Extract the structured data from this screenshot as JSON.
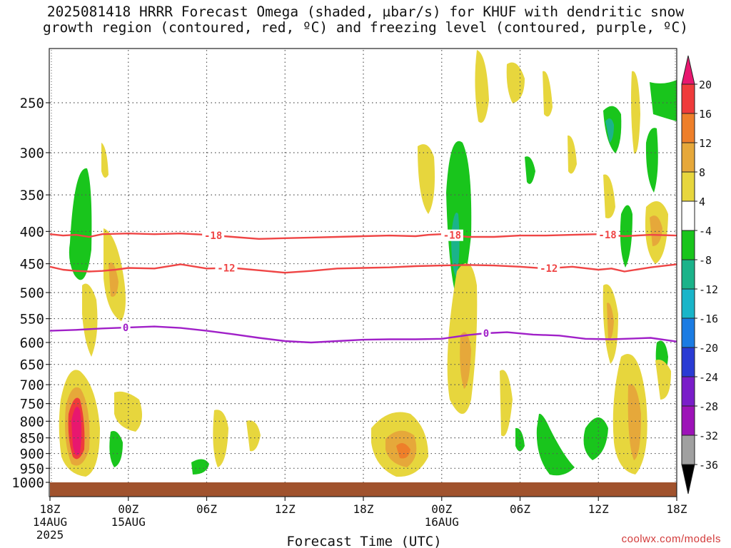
{
  "chart_data": {
    "type": "heatmap",
    "title_line1": "2025081418 HRRR Forecast Omega (shaded, µbar/s) for KHUF with dendritic snow",
    "title_line2": "growth region (contoured, red, ºC) and freezing level (contoured, purple, ºC)",
    "xlabel": "Forecast Time (UTC)",
    "credit": "coolwx.com/models",
    "x_ticks": [
      {
        "hour": 0,
        "label": "18Z",
        "sub1": "14AUG",
        "sub2": "2025"
      },
      {
        "hour": 6,
        "label": "00Z",
        "sub1": "15AUG",
        "sub2": ""
      },
      {
        "hour": 12,
        "label": "06Z",
        "sub1": "",
        "sub2": ""
      },
      {
        "hour": 18,
        "label": "12Z",
        "sub1": "",
        "sub2": ""
      },
      {
        "hour": 24,
        "label": "18Z",
        "sub1": "",
        "sub2": ""
      },
      {
        "hour": 30,
        "label": "00Z",
        "sub1": "16AUG",
        "sub2": ""
      },
      {
        "hour": 36,
        "label": "06Z",
        "sub1": "",
        "sub2": ""
      },
      {
        "hour": 42,
        "label": "12Z",
        "sub1": "",
        "sub2": ""
      },
      {
        "hour": 48,
        "label": "18Z",
        "sub1": "",
        "sub2": ""
      }
    ],
    "y_ticks": [
      250,
      300,
      350,
      400,
      450,
      500,
      550,
      600,
      650,
      700,
      750,
      800,
      850,
      900,
      950,
      1000
    ],
    "xlim_hours": [
      0,
      48
    ],
    "ylim_mb": [
      200,
      1000
    ],
    "colorbar": {
      "labels": [
        "20",
        "16",
        "12",
        "8",
        "4",
        "-4",
        "-8",
        "-12",
        "-16",
        "-20",
        "-24",
        "-28",
        "-32",
        "-36"
      ],
      "colors": [
        "#e8176f",
        "#ef3b3b",
        "#ee7f2a",
        "#e6a83a",
        "#e7d63d",
        "#ffffff",
        "#19c51c",
        "#1bb38a",
        "#19b5c9",
        "#1b7ce3",
        "#2a3bd4",
        "#7a1dc9",
        "#9d12b8",
        "#a0a0a0",
        "#000000"
      ]
    },
    "contours": [
      {
        "label": "-18",
        "color": "#ef4545",
        "label_hours": [
          12.5,
          30.8,
          42.7
        ],
        "points": [
          [
            0,
            404
          ],
          [
            1,
            406
          ],
          [
            2,
            405
          ],
          [
            3,
            408
          ],
          [
            4,
            404
          ],
          [
            6,
            403
          ],
          [
            8,
            404
          ],
          [
            10,
            403
          ],
          [
            12,
            405
          ],
          [
            14,
            408
          ],
          [
            16,
            411
          ],
          [
            18,
            410
          ],
          [
            20,
            409
          ],
          [
            22,
            408
          ],
          [
            24,
            407
          ],
          [
            26,
            406
          ],
          [
            28,
            407
          ],
          [
            29,
            405
          ],
          [
            30,
            404
          ],
          [
            31,
            406
          ],
          [
            32,
            408
          ],
          [
            34,
            408
          ],
          [
            36,
            406
          ],
          [
            38,
            406
          ],
          [
            40,
            405
          ],
          [
            42,
            404
          ],
          [
            44,
            407
          ],
          [
            46,
            405
          ],
          [
            48,
            406
          ]
        ]
      },
      {
        "label": "-12",
        "color": "#ef4545",
        "label_hours": [
          13.5,
          38.2
        ],
        "points": [
          [
            0,
            455
          ],
          [
            1,
            460
          ],
          [
            2,
            462
          ],
          [
            3,
            463
          ],
          [
            4,
            462
          ],
          [
            5,
            460
          ],
          [
            6,
            457
          ],
          [
            8,
            458
          ],
          [
            10,
            451
          ],
          [
            12,
            458
          ],
          [
            14,
            457
          ],
          [
            16,
            461
          ],
          [
            18,
            465
          ],
          [
            20,
            462
          ],
          [
            22,
            458
          ],
          [
            24,
            457
          ],
          [
            26,
            456
          ],
          [
            28,
            454
          ],
          [
            30,
            453
          ],
          [
            32,
            452
          ],
          [
            34,
            453
          ],
          [
            36,
            455
          ],
          [
            38,
            458
          ],
          [
            40,
            455
          ],
          [
            42,
            460
          ],
          [
            43,
            458
          ],
          [
            44,
            463
          ],
          [
            46,
            456
          ],
          [
            48,
            451
          ]
        ]
      },
      {
        "label": "0",
        "color": "#a020c8",
        "label_hours": [
          5.8,
          33.4
        ],
        "points": [
          [
            0,
            575
          ],
          [
            2,
            573
          ],
          [
            4,
            570
          ],
          [
            6,
            568
          ],
          [
            8,
            566
          ],
          [
            10,
            569
          ],
          [
            12,
            575
          ],
          [
            14,
            582
          ],
          [
            16,
            590
          ],
          [
            18,
            597
          ],
          [
            20,
            600
          ],
          [
            22,
            597
          ],
          [
            24,
            594
          ],
          [
            26,
            593
          ],
          [
            28,
            593
          ],
          [
            30,
            592
          ],
          [
            32,
            584
          ],
          [
            33.4,
            580
          ],
          [
            35,
            578
          ],
          [
            37,
            583
          ],
          [
            39,
            585
          ],
          [
            41,
            592
          ],
          [
            43,
            593
          ],
          [
            45,
            591
          ],
          [
            46,
            590
          ],
          [
            48,
            598
          ]
        ]
      }
    ],
    "omega_shading_note": "positive upward motion shaded yellow-orange-pink, negative shaded green"
  }
}
